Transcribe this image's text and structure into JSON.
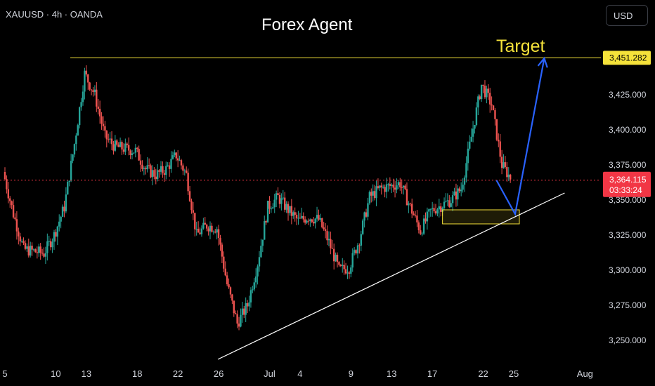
{
  "header": {
    "symbol": "XAUUSD · 4h · OANDA",
    "title": "Forex Agent",
    "currency": "USD"
  },
  "annotations": {
    "target_label": "Target",
    "target_price": "3,451.282",
    "current_price": "3,364.115",
    "countdown": "03:33:24"
  },
  "colors": {
    "up": "#26a69a",
    "down": "#ef5350",
    "target_line": "#f5e23a",
    "arrow": "#2962ff",
    "trendline": "#ffffff",
    "price_tag": "#f23645",
    "background": "#000000"
  },
  "chart_data": {
    "type": "candlestick",
    "title": "",
    "timeframe": "4h",
    "ylim": [
      3236,
      3462
    ],
    "y_ticks": [
      3250,
      3275,
      3300,
      3325,
      3350,
      3375,
      3400,
      3425
    ],
    "y_tick_labels": [
      "3,250.000",
      "3,275.000",
      "3,300.000",
      "3,325.000",
      "3,350.000",
      "3,375.000",
      "3,400.000",
      "3,425.000"
    ],
    "x_ticks": [
      {
        "label": "5",
        "date": "2025-06-05"
      },
      {
        "label": "10",
        "date": "2025-06-10"
      },
      {
        "label": "13",
        "date": "2025-06-13"
      },
      {
        "label": "18",
        "date": "2025-06-18"
      },
      {
        "label": "22",
        "date": "2025-06-22"
      },
      {
        "label": "26",
        "date": "2025-06-26"
      },
      {
        "label": "Jul",
        "date": "2025-07-01"
      },
      {
        "label": "4",
        "date": "2025-07-04"
      },
      {
        "label": "9",
        "date": "2025-07-09"
      },
      {
        "label": "13",
        "date": "2025-07-13"
      },
      {
        "label": "17",
        "date": "2025-07-17"
      },
      {
        "label": "22",
        "date": "2025-07-22"
      },
      {
        "label": "25",
        "date": "2025-07-25"
      },
      {
        "label": "Aug",
        "date": "2025-08-01"
      }
    ],
    "price_path": [
      [
        "2025-06-05",
        3370
      ],
      [
        "2025-06-06",
        3340
      ],
      [
        "2025-06-07",
        3315
      ],
      [
        "2025-06-09",
        3312
      ],
      [
        "2025-06-10",
        3325
      ],
      [
        "2025-06-11",
        3345
      ],
      [
        "2025-06-12",
        3390
      ],
      [
        "2025-06-13",
        3440
      ],
      [
        "2025-06-14",
        3425
      ],
      [
        "2025-06-15",
        3395
      ],
      [
        "2025-06-16",
        3388
      ],
      [
        "2025-06-18",
        3385
      ],
      [
        "2025-06-19",
        3372
      ],
      [
        "2025-06-20",
        3368
      ],
      [
        "2025-06-21",
        3372
      ],
      [
        "2025-06-22",
        3382
      ],
      [
        "2025-06-23",
        3368
      ],
      [
        "2025-06-24",
        3325
      ],
      [
        "2025-06-25",
        3332
      ],
      [
        "2025-06-26",
        3330
      ],
      [
        "2025-06-27",
        3290
      ],
      [
        "2025-06-28",
        3262
      ],
      [
        "2025-06-29",
        3275
      ],
      [
        "2025-06-30",
        3305
      ],
      [
        "2025-07-01",
        3345
      ],
      [
        "2025-07-02",
        3352
      ],
      [
        "2025-07-03",
        3343
      ],
      [
        "2025-07-04",
        3335
      ],
      [
        "2025-07-05",
        3338
      ],
      [
        "2025-07-06",
        3336
      ],
      [
        "2025-07-07",
        3320
      ],
      [
        "2025-07-08",
        3300
      ],
      [
        "2025-07-09",
        3302
      ],
      [
        "2025-07-10",
        3322
      ],
      [
        "2025-07-11",
        3352
      ],
      [
        "2025-07-12",
        3358
      ],
      [
        "2025-07-13",
        3360
      ],
      [
        "2025-07-14",
        3362
      ],
      [
        "2025-07-15",
        3345
      ],
      [
        "2025-07-16",
        3328
      ],
      [
        "2025-07-17",
        3342
      ],
      [
        "2025-07-18",
        3346
      ],
      [
        "2025-07-19",
        3350
      ],
      [
        "2025-07-20",
        3358
      ],
      [
        "2025-07-21",
        3395
      ],
      [
        "2025-07-22",
        3432
      ],
      [
        "2025-07-23",
        3418
      ],
      [
        "2025-07-24",
        3375
      ],
      [
        "2025-07-25",
        3364
      ]
    ],
    "levels": [
      {
        "name": "Target",
        "price": 3451.282
      },
      {
        "name": "Last price",
        "price": 3364.115
      }
    ],
    "trendline": [
      [
        "2025-06-28",
        3244
      ],
      [
        "2025-07-30",
        3355
      ]
    ],
    "demand_zone": {
      "from": "2025-07-18",
      "to": "2025-07-25",
      "low": 3333,
      "high": 3343
    },
    "projection": [
      [
        "2025-07-24",
        3364
      ],
      [
        "2025-07-25",
        3340
      ],
      [
        "2025-07-28",
        3451
      ]
    ]
  }
}
